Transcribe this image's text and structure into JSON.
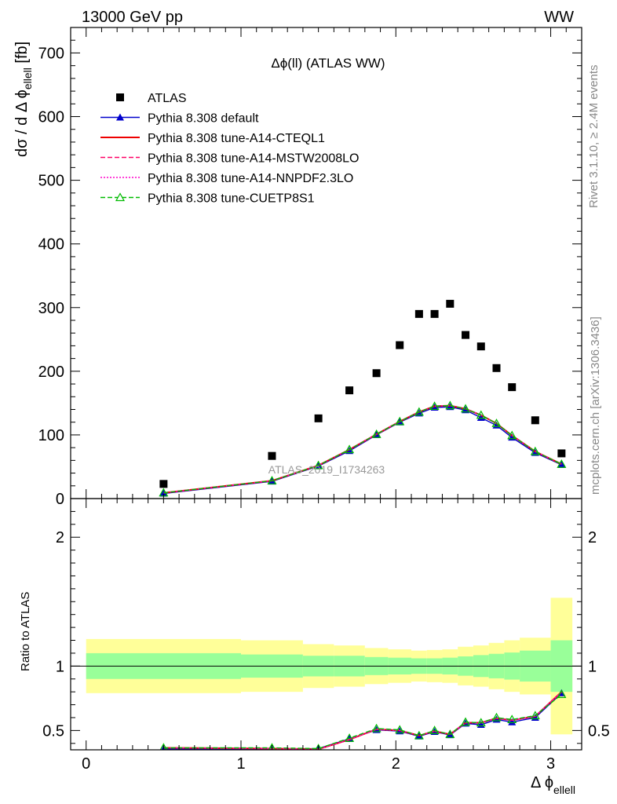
{
  "header": {
    "energy_label": "13000 GeV pp",
    "process_label": "WW",
    "rivet_label": "Rivet 3.1.10, ≥ 2.4M events",
    "mcplots_label": "mcplots.cern.ch [arXiv:1306.3436]",
    "analysis_watermark": "ATLAS_2019_I1734263"
  },
  "colors": {
    "data": "#000000",
    "default": "#0000cc",
    "cteql1": "#ee0000",
    "mstw": "#ff0066",
    "nnpdf": "#ff00cc",
    "cuetp8s1": "#00bb00",
    "band_inner": "#99ff99",
    "band_outer": "#ffff99"
  },
  "chart_data": [
    {
      "type": "scatter",
      "panel": "main",
      "title": "Δϕ(ll) (ATLAS WW)",
      "ylabel": "dσ / d Δ ϕ ellell [fb]",
      "ylabel_parts": {
        "pre": "dσ / d Δ ϕ",
        "sub": "ellell",
        "post": " [fb]"
      },
      "xlim": [
        -0.1,
        3.2
      ],
      "ylim": [
        0,
        740
      ],
      "yticks": [
        0,
        100,
        200,
        300,
        400,
        500,
        600,
        700
      ],
      "legend_position": "top-left",
      "x": [
        0.5,
        1.2,
        1.5,
        1.7,
        1.875,
        2.025,
        2.15,
        2.25,
        2.35,
        2.45,
        2.55,
        2.65,
        2.75,
        2.9,
        3.07
      ],
      "series": [
        {
          "name": "ATLAS",
          "key": "data",
          "marker": "square",
          "values": [
            23,
            67,
            126,
            170,
            197,
            241,
            290,
            290,
            306,
            257,
            239,
            205,
            175,
            123,
            71
          ]
        },
        {
          "name": "Pythia 8.308 default",
          "key": "default",
          "marker": "triangle-filled",
          "dash": "solid",
          "values": [
            8,
            27,
            51,
            75,
            100,
            120,
            134,
            143,
            144,
            139,
            127,
            115,
            96,
            72,
            53
          ]
        },
        {
          "name": "Pythia 8.308 tune-A14-CTEQL1",
          "key": "cteql1",
          "marker": "none",
          "dash": "solid",
          "values": [
            9,
            28,
            52,
            77,
            101,
            121,
            136,
            145,
            146,
            141,
            131,
            118,
            99,
            74,
            54
          ]
        },
        {
          "name": "Pythia 8.308 tune-A14-MSTW2008LO",
          "key": "mstw",
          "marker": "none",
          "dash": "dashed",
          "values": [
            9,
            28,
            52,
            77,
            101,
            121,
            136,
            145,
            146,
            141,
            131,
            118,
            99,
            74,
            54
          ]
        },
        {
          "name": "Pythia 8.308 tune-A14-NNPDF2.3LO",
          "key": "nnpdf",
          "marker": "none",
          "dash": "dotted",
          "values": [
            9,
            28,
            52,
            77,
            101,
            121,
            136,
            145,
            146,
            141,
            131,
            118,
            99,
            74,
            54
          ]
        },
        {
          "name": "Pythia 8.308 tune-CUETP8S1",
          "key": "cuetp8s1",
          "marker": "triangle-open",
          "dash": "dashed",
          "values": [
            9,
            28,
            52,
            77,
            101,
            121,
            136,
            145,
            146,
            141,
            131,
            118,
            99,
            74,
            54
          ]
        }
      ]
    },
    {
      "type": "line",
      "panel": "ratio",
      "ylabel": "Ratio to ATLAS",
      "xlabel": "Δ ϕ ellell",
      "xlabel_parts": {
        "pre": "Δ ϕ",
        "sub": "ellell"
      },
      "xlim": [
        -0.1,
        3.2
      ],
      "ylim": [
        0.35,
        2.3
      ],
      "xticks": [
        0,
        1,
        2,
        3
      ],
      "yticks": [
        0.5,
        1,
        2
      ],
      "bins": [
        [
          0,
          1
        ],
        [
          1,
          1.4
        ],
        [
          1.4,
          1.6
        ],
        [
          1.6,
          1.8
        ],
        [
          1.8,
          1.95
        ],
        [
          1.95,
          2.1
        ],
        [
          2.1,
          2.2
        ],
        [
          2.2,
          2.3
        ],
        [
          2.3,
          2.4
        ],
        [
          2.4,
          2.5
        ],
        [
          2.5,
          2.6
        ],
        [
          2.6,
          2.7
        ],
        [
          2.7,
          2.8
        ],
        [
          2.8,
          3.0
        ],
        [
          3.0,
          3.14
        ]
      ],
      "band_inner": [
        [
          0.9,
          1.1
        ],
        [
          0.91,
          1.09
        ],
        [
          0.92,
          1.08
        ],
        [
          0.92,
          1.08
        ],
        [
          0.93,
          1.07
        ],
        [
          0.935,
          1.065
        ],
        [
          0.94,
          1.06
        ],
        [
          0.94,
          1.06
        ],
        [
          0.935,
          1.065
        ],
        [
          0.925,
          1.075
        ],
        [
          0.915,
          1.085
        ],
        [
          0.905,
          1.095
        ],
        [
          0.895,
          1.105
        ],
        [
          0.88,
          1.12
        ],
        [
          0.8,
          1.2
        ]
      ],
      "band_outer": [
        [
          0.79,
          1.21
        ],
        [
          0.8,
          1.2
        ],
        [
          0.83,
          1.17
        ],
        [
          0.84,
          1.16
        ],
        [
          0.86,
          1.14
        ],
        [
          0.87,
          1.13
        ],
        [
          0.88,
          1.12
        ],
        [
          0.875,
          1.125
        ],
        [
          0.87,
          1.13
        ],
        [
          0.85,
          1.15
        ],
        [
          0.84,
          1.16
        ],
        [
          0.82,
          1.18
        ],
        [
          0.8,
          1.2
        ],
        [
          0.78,
          1.22
        ],
        [
          0.47,
          1.53
        ]
      ],
      "x": [
        0.5,
        1.2,
        1.5,
        1.7,
        1.875,
        2.025,
        2.15,
        2.25,
        2.35,
        2.45,
        2.55,
        2.65,
        2.75,
        2.9,
        3.07
      ],
      "series": [
        {
          "name": "Pythia 8.308 default",
          "key": "default",
          "marker": "triangle-filled",
          "dash": "solid",
          "values": [
            0.355,
            0.355,
            0.36,
            0.435,
            0.505,
            0.495,
            0.455,
            0.49,
            0.465,
            0.555,
            0.545,
            0.585,
            0.565,
            0.6,
            0.79
          ]
        },
        {
          "name": "Pythia 8.308 tune-A14-CTEQL1",
          "key": "cteql1",
          "marker": "none",
          "dash": "solid",
          "values": [
            0.365,
            0.36,
            0.355,
            0.43,
            0.51,
            0.5,
            0.46,
            0.495,
            0.47,
            0.56,
            0.56,
            0.595,
            0.58,
            0.61,
            0.8
          ]
        },
        {
          "name": "Pythia 8.308 tune-A14-MSTW2008LO",
          "key": "mstw",
          "marker": "none",
          "dash": "dashed",
          "values": [
            0.365,
            0.36,
            0.355,
            0.43,
            0.51,
            0.5,
            0.46,
            0.495,
            0.47,
            0.56,
            0.56,
            0.595,
            0.58,
            0.61,
            0.8
          ]
        },
        {
          "name": "Pythia 8.308 tune-A14-NNPDF2.3LO",
          "key": "nnpdf",
          "marker": "none",
          "dash": "dotted",
          "values": [
            0.365,
            0.36,
            0.355,
            0.43,
            0.51,
            0.5,
            0.46,
            0.495,
            0.47,
            0.56,
            0.56,
            0.595,
            0.58,
            0.61,
            0.8
          ]
        },
        {
          "name": "Pythia 8.308 tune-CUETP8S1",
          "key": "cuetp8s1",
          "marker": "triangle-open",
          "dash": "dashed",
          "values": [
            0.365,
            0.365,
            0.36,
            0.44,
            0.515,
            0.505,
            0.46,
            0.5,
            0.47,
            0.565,
            0.56,
            0.6,
            0.585,
            0.615,
            0.78
          ]
        }
      ]
    }
  ]
}
